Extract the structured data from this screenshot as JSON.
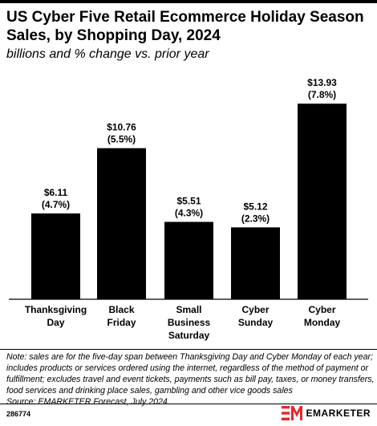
{
  "title": "US Cyber Five Retail Ecommerce Holiday Season Sales, by Shopping Day, 2024",
  "subtitle": "billions and % change vs. prior year",
  "chart_data": {
    "type": "bar",
    "categories": [
      [
        "Thanksgiving",
        "Day"
      ],
      [
        "Black",
        "Friday"
      ],
      [
        "Small",
        "Business",
        "Saturday"
      ],
      [
        "Cyber",
        "Sunday"
      ],
      [
        "Cyber",
        "Monday"
      ]
    ],
    "values": [
      6.11,
      10.76,
      5.51,
      5.12,
      13.93
    ],
    "value_labels": [
      "$6.11",
      "$10.76",
      "$5.51",
      "$5.12",
      "$13.93"
    ],
    "change_labels": [
      "(4.7%)",
      "(5.5%)",
      "(4.3%)",
      "(2.3%)",
      "(7.8%)"
    ],
    "ylim": [
      0,
      14
    ],
    "bar_color": "#000000",
    "grid": false,
    "legend": "none"
  },
  "note": "Note: sales are for the five-day span between Thanksgiving Day and Cyber Monday of each year; includes products or services ordered using the internet, regardless of the method of payment or fulfillment; excludes travel and event tickets, payments such as bill pay, taxes, or money transfers, food services and drinking place sales, gambling and other vice goods sales",
  "source": "Source: EMARKETER Forecast, July 2024",
  "chart_id": "286774",
  "brand": {
    "name": "EMARKETER",
    "icon": "emarketer-logo-icon",
    "color": "#e8262b"
  }
}
